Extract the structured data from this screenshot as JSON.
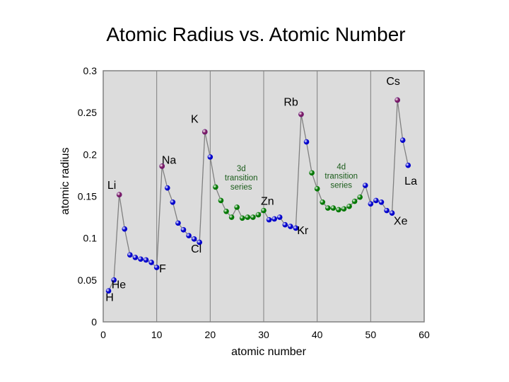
{
  "chart_data": {
    "type": "scatter",
    "title": "Atomic Radius vs. Atomic Number",
    "xlabel": "atomic number",
    "ylabel": "atomic radius",
    "xlim": [
      0,
      60
    ],
    "ylim": [
      0,
      0.3
    ],
    "xticks": [
      "0",
      "10",
      "20",
      "30",
      "40",
      "50",
      "60"
    ],
    "yticks": [
      "0",
      "0.05",
      "0.1",
      "0.15",
      "0.2",
      "0.25",
      "0.3"
    ],
    "grid": "vertical",
    "colors": {
      "plot_bg": "#dcdcdc",
      "main": "#0000cc",
      "alkali": "#7a1a66",
      "transition": "#007700",
      "line": "#808080"
    },
    "series": [
      {
        "group": "main",
        "points": [
          [
            1,
            0.037
          ],
          [
            2,
            0.05
          ],
          [
            3,
            0.152
          ],
          [
            4,
            0.111
          ],
          [
            5,
            0.08
          ],
          [
            6,
            0.077
          ],
          [
            7,
            0.075
          ],
          [
            8,
            0.074
          ],
          [
            9,
            0.071
          ],
          [
            10,
            0.065
          ],
          [
            11,
            0.186
          ],
          [
            12,
            0.16
          ],
          [
            13,
            0.143
          ],
          [
            14,
            0.118
          ],
          [
            15,
            0.11
          ],
          [
            16,
            0.103
          ],
          [
            17,
            0.099
          ],
          [
            18,
            0.095
          ],
          [
            19,
            0.227
          ],
          [
            20,
            0.197
          ],
          [
            31,
            0.122
          ],
          [
            32,
            0.123
          ],
          [
            33,
            0.125
          ],
          [
            34,
            0.116
          ],
          [
            35,
            0.114
          ],
          [
            36,
            0.112
          ],
          [
            37,
            0.248
          ],
          [
            38,
            0.215
          ],
          [
            49,
            0.163
          ],
          [
            50,
            0.141
          ],
          [
            51,
            0.145
          ],
          [
            52,
            0.143
          ],
          [
            53,
            0.133
          ],
          [
            54,
            0.13
          ],
          [
            55,
            0.265
          ],
          [
            56,
            0.217
          ],
          [
            57,
            0.187
          ]
        ]
      },
      {
        "group": "transition",
        "points": [
          [
            21,
            0.161
          ],
          [
            22,
            0.145
          ],
          [
            23,
            0.132
          ],
          [
            24,
            0.125
          ],
          [
            25,
            0.137
          ],
          [
            26,
            0.124
          ],
          [
            27,
            0.125
          ],
          [
            28,
            0.125
          ],
          [
            29,
            0.128
          ],
          [
            30,
            0.133
          ],
          [
            39,
            0.178
          ],
          [
            40,
            0.159
          ],
          [
            41,
            0.143
          ],
          [
            42,
            0.136
          ],
          [
            43,
            0.136
          ],
          [
            44,
            0.134
          ],
          [
            45,
            0.135
          ],
          [
            46,
            0.138
          ],
          [
            47,
            0.144
          ],
          [
            48,
            0.149
          ]
        ]
      },
      {
        "group": "alkali",
        "points": [
          [
            3,
            0.152
          ],
          [
            11,
            0.186
          ],
          [
            19,
            0.227
          ],
          [
            37,
            0.248
          ],
          [
            55,
            0.265
          ]
        ]
      }
    ],
    "annotations": [
      {
        "text": "H",
        "x": 1.2,
        "y": 0.025,
        "color": "black"
      },
      {
        "text": "He",
        "x": 2.9,
        "y": 0.04,
        "color": "black"
      },
      {
        "text": "Li",
        "x": 1.6,
        "y": 0.159,
        "color": "black"
      },
      {
        "text": "Na",
        "x": 12.3,
        "y": 0.189,
        "color": "black"
      },
      {
        "text": "K",
        "x": 17.1,
        "y": 0.238,
        "color": "black"
      },
      {
        "text": "Rb",
        "x": 35.1,
        "y": 0.258,
        "color": "black"
      },
      {
        "text": "Cs",
        "x": 54.2,
        "y": 0.283,
        "color": "black"
      },
      {
        "text": "F",
        "x": 11.1,
        "y": 0.059,
        "color": "black"
      },
      {
        "text": "Cl",
        "x": 17.4,
        "y": 0.083,
        "color": "black"
      },
      {
        "text": "Zn",
        "x": 30.7,
        "y": 0.14,
        "color": "black"
      },
      {
        "text": "Kr",
        "x": 37.3,
        "y": 0.105,
        "color": "black"
      },
      {
        "text": "Xe",
        "x": 55.6,
        "y": 0.116,
        "color": "black"
      },
      {
        "text": "La",
        "x": 57.5,
        "y": 0.164,
        "color": "black"
      },
      {
        "text": "3d",
        "x": 25.8,
        "y": 0.18,
        "color": "green"
      },
      {
        "text": "transition",
        "x": 25.8,
        "y": 0.169,
        "color": "green"
      },
      {
        "text": "series",
        "x": 25.8,
        "y": 0.158,
        "color": "green"
      },
      {
        "text": "4d",
        "x": 44.5,
        "y": 0.182,
        "color": "green"
      },
      {
        "text": "transition",
        "x": 44.5,
        "y": 0.171,
        "color": "green"
      },
      {
        "text": "series",
        "x": 44.5,
        "y": 0.16,
        "color": "green"
      }
    ]
  }
}
